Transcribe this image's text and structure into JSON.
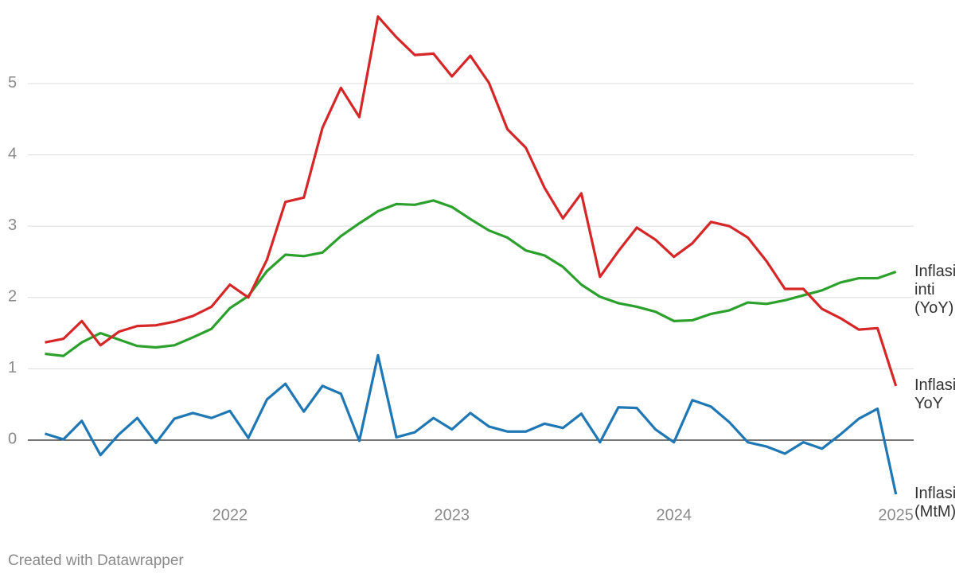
{
  "chart_data": {
    "type": "line",
    "x": [
      2021.167,
      2021.25,
      2021.333,
      2021.417,
      2021.5,
      2021.583,
      2021.667,
      2021.75,
      2021.833,
      2021.917,
      2022,
      2022.083,
      2022.167,
      2022.25,
      2022.333,
      2022.417,
      2022.5,
      2022.583,
      2022.667,
      2022.75,
      2022.833,
      2022.917,
      2023,
      2023.083,
      2023.167,
      2023.25,
      2023.333,
      2023.417,
      2023.5,
      2023.583,
      2023.667,
      2023.75,
      2023.833,
      2023.917,
      2024,
      2024.083,
      2024.167,
      2024.25,
      2024.333,
      2024.417,
      2024.5,
      2024.583,
      2024.667,
      2024.75,
      2024.833,
      2024.917,
      2025
    ],
    "series": [
      {
        "name": "Inflasi inti (YoY)",
        "color": "#2ca02c",
        "values": [
          1.21,
          1.18,
          1.37,
          1.5,
          1.41,
          1.32,
          1.3,
          1.33,
          1.44,
          1.56,
          1.85,
          2.02,
          2.37,
          2.6,
          2.58,
          2.63,
          2.86,
          3.04,
          3.21,
          3.31,
          3.3,
          3.36,
          3.27,
          3.1,
          2.94,
          2.84,
          2.66,
          2.59,
          2.43,
          2.18,
          2.01,
          1.92,
          1.87,
          1.8,
          1.67,
          1.68,
          1.77,
          1.82,
          1.93,
          1.91,
          1.96,
          2.03,
          2.1,
          2.21,
          2.27,
          2.27,
          2.36
        ]
      },
      {
        "name": "Inflasi YoY",
        "color": "#d62728",
        "values": [
          1.37,
          1.42,
          1.67,
          1.33,
          1.52,
          1.6,
          1.61,
          1.66,
          1.74,
          1.87,
          2.18,
          2.0,
          2.53,
          3.34,
          3.4,
          4.38,
          4.94,
          4.53,
          5.94,
          5.65,
          5.4,
          5.42,
          5.1,
          5.39,
          5.01,
          4.36,
          4.1,
          3.54,
          3.11,
          3.46,
          2.29,
          2.65,
          2.98,
          2.81,
          2.57,
          2.76,
          3.06,
          3.0,
          2.84,
          2.51,
          2.12,
          2.12,
          1.84,
          1.71,
          1.55,
          1.57,
          0.76
        ]
      },
      {
        "name": "Inflasi (MtM)",
        "color": "#1f77b4",
        "values": [
          0.09,
          0.01,
          0.27,
          -0.21,
          0.08,
          0.31,
          -0.04,
          0.3,
          0.38,
          0.31,
          0.41,
          0.03,
          0.57,
          0.79,
          0.4,
          0.76,
          0.65,
          -0.01,
          1.19,
          0.04,
          0.11,
          0.31,
          0.15,
          0.38,
          0.19,
          0.12,
          0.12,
          0.23,
          0.17,
          0.37,
          -0.03,
          0.46,
          0.45,
          0.15,
          -0.03,
          0.56,
          0.47,
          0.25,
          -0.03,
          -0.09,
          -0.19,
          -0.03,
          -0.12,
          0.08,
          0.3,
          0.44,
          -0.76
        ]
      }
    ],
    "xlim": [
      2021.09,
      2025.08
    ],
    "xticks": [
      2022,
      2023,
      2024,
      2025
    ],
    "ylim": [
      -0.9,
      6
    ],
    "yticks": [
      0,
      1,
      2,
      3,
      4,
      5
    ],
    "grid": true,
    "footer": "Created with Datawrapper"
  }
}
